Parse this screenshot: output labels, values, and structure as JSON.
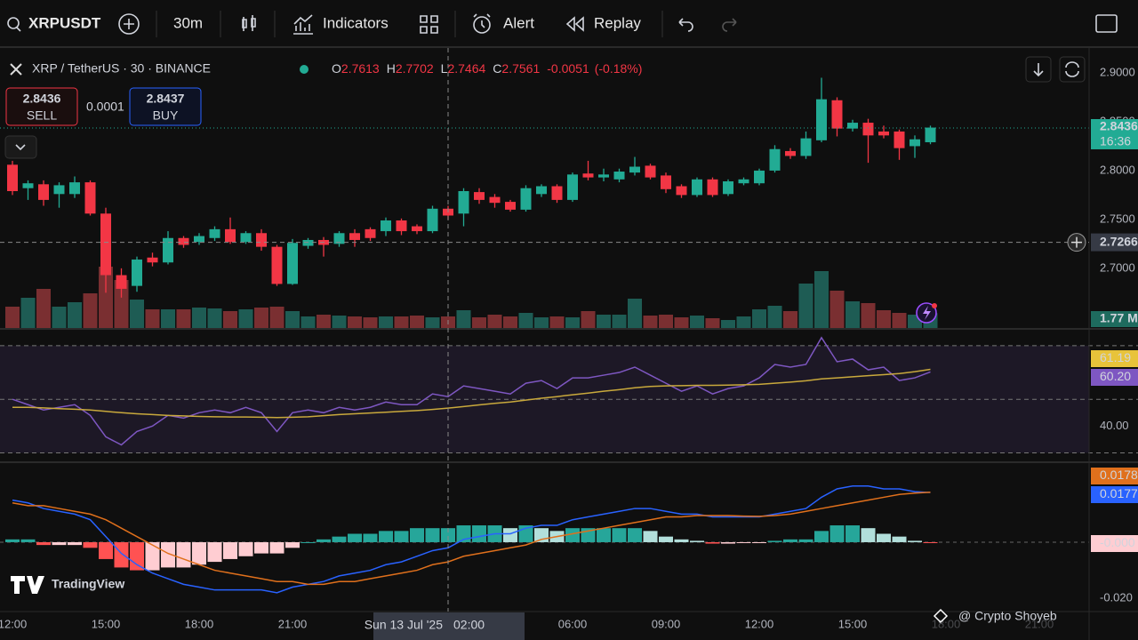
{
  "toolbar": {
    "symbol": "XRPUSDT",
    "interval": "30m",
    "indicators": "Indicators",
    "alert": "Alert",
    "replay": "Replay"
  },
  "legend": {
    "title": "XRP / TetherUS · 30 · BINANCE",
    "ohlc": [
      {
        "key": "O",
        "value": 2.7613
      },
      {
        "key": "H",
        "value": 2.7702
      },
      {
        "key": "L",
        "value": 2.7464
      },
      {
        "key": "C",
        "value": 2.7561
      }
    ],
    "change": -0.0051,
    "change_pct": "(-0.18%)"
  },
  "trade": {
    "sell_price": 2.8436,
    "sell": "SELL",
    "spread": 0.0001,
    "buy_price": 2.8437,
    "buy": "BUY"
  },
  "price_pane": {
    "ylim": [
      2.638,
      2.92
    ],
    "yticks": [
      {
        "value": 2.9,
        "label": "2.9000"
      },
      {
        "value": 2.85,
        "label": "2.8500"
      },
      {
        "value": 2.8,
        "label": "2.8000"
      },
      {
        "value": 2.75,
        "label": "2.7500"
      },
      {
        "value": 2.7,
        "label": "2.7000"
      }
    ],
    "up_color": "#22ab94",
    "down_color": "#f23645",
    "vol_up_color": "#1e5c54",
    "vol_down_color": "#7a2f31",
    "candles": [
      [
        2.806,
        2.81,
        2.775,
        2.779
      ],
      [
        2.782,
        2.79,
        2.77,
        2.787
      ],
      [
        2.786,
        2.79,
        2.764,
        2.77
      ],
      [
        2.776,
        2.788,
        2.762,
        2.785
      ],
      [
        2.776,
        2.794,
        2.772,
        2.788
      ],
      [
        2.788,
        2.79,
        2.754,
        2.756
      ],
      [
        2.756,
        2.762,
        2.675,
        2.693
      ],
      [
        2.693,
        2.7,
        2.67,
        2.679
      ],
      [
        2.682,
        2.712,
        2.676,
        2.709
      ],
      [
        2.711,
        2.716,
        2.702,
        2.706
      ],
      [
        2.706,
        2.738,
        2.704,
        2.731
      ],
      [
        2.731,
        2.733,
        2.721,
        2.724
      ],
      [
        2.727,
        2.736,
        2.724,
        2.733
      ],
      [
        2.731,
        2.743,
        2.728,
        2.74
      ],
      [
        2.74,
        2.752,
        2.725,
        2.727
      ],
      [
        2.727,
        2.738,
        2.725,
        2.736
      ],
      [
        2.736,
        2.74,
        2.718,
        2.722
      ],
      [
        2.722,
        2.724,
        2.682,
        2.684
      ],
      [
        2.684,
        2.73,
        2.683,
        2.726
      ],
      [
        2.723,
        2.731,
        2.72,
        2.729
      ],
      [
        2.729,
        2.732,
        2.712,
        2.724
      ],
      [
        2.725,
        2.738,
        2.722,
        2.736
      ],
      [
        2.736,
        2.74,
        2.722,
        2.729
      ],
      [
        2.74,
        2.742,
        2.728,
        2.731
      ],
      [
        2.738,
        2.752,
        2.733,
        2.749
      ],
      [
        2.749,
        2.751,
        2.734,
        2.738
      ],
      [
        2.743,
        2.745,
        2.735,
        2.738
      ],
      [
        2.738,
        2.764,
        2.736,
        2.761
      ],
      [
        2.761,
        2.764,
        2.75,
        2.754
      ],
      [
        2.756,
        2.782,
        2.743,
        2.779
      ],
      [
        2.778,
        2.782,
        2.766,
        2.77
      ],
      [
        2.773,
        2.776,
        2.762,
        2.767
      ],
      [
        2.768,
        2.77,
        2.758,
        2.76
      ],
      [
        2.76,
        2.785,
        2.758,
        2.782
      ],
      [
        2.776,
        2.786,
        2.773,
        2.784
      ],
      [
        2.784,
        2.786,
        2.767,
        2.77
      ],
      [
        2.77,
        2.798,
        2.768,
        2.796
      ],
      [
        2.797,
        2.81,
        2.79,
        2.793
      ],
      [
        2.793,
        2.802,
        2.789,
        2.796
      ],
      [
        2.791,
        2.802,
        2.788,
        2.799
      ],
      [
        2.798,
        2.814,
        2.795,
        2.804
      ],
      [
        2.805,
        2.807,
        2.791,
        2.793
      ],
      [
        2.795,
        2.798,
        2.777,
        2.781
      ],
      [
        2.784,
        2.786,
        2.772,
        2.775
      ],
      [
        2.775,
        2.793,
        2.773,
        2.791
      ],
      [
        2.791,
        2.793,
        2.773,
        2.775
      ],
      [
        2.776,
        2.791,
        2.774,
        2.789
      ],
      [
        2.787,
        2.793,
        2.785,
        2.791
      ],
      [
        2.787,
        2.802,
        2.785,
        2.8
      ],
      [
        2.8,
        2.826,
        2.798,
        2.822
      ],
      [
        2.82,
        2.823,
        2.812,
        2.815
      ],
      [
        2.815,
        2.84,
        2.812,
        2.833
      ],
      [
        2.831,
        2.895,
        2.829,
        2.873
      ],
      [
        2.872,
        2.875,
        2.835,
        2.843
      ],
      [
        2.843,
        2.852,
        2.84,
        2.849
      ],
      [
        2.849,
        2.853,
        2.808,
        2.836
      ],
      [
        2.84,
        2.846,
        2.833,
        2.836
      ],
      [
        2.84,
        2.842,
        2.811,
        2.823
      ],
      [
        2.825,
        2.836,
        2.813,
        2.832
      ],
      [
        2.829,
        2.846,
        2.827,
        2.844
      ]
    ],
    "volume_ylim": [
      0,
      31
    ],
    "volumes": [
      2.5,
      3.5,
      4.5,
      2.5,
      3,
      4,
      7,
      5.5,
      3.3,
      2.2,
      2.2,
      2.2,
      2.4,
      2.3,
      2,
      2.2,
      2.4,
      2.5,
      2,
      1.4,
      1.6,
      1.5,
      1.4,
      1.3,
      1.4,
      1.4,
      1.5,
      1.3,
      1.4,
      2.1,
      1.3,
      1.6,
      1.4,
      1.8,
      1.3,
      1.4,
      1.3,
      2,
      1.6,
      1.6,
      3.4,
      1.5,
      1.6,
      1.3,
      1.5,
      1.2,
      1,
      1.4,
      2.2,
      2.6,
      2,
      5.1,
      6.5,
      4.3,
      3.1,
      2.9,
      2.1,
      1.8,
      1.6,
      1.77
    ],
    "last_price": 2.8436,
    "countdown": "16:36",
    "volume_label": "1.77 M",
    "crosshair_price": 2.7266,
    "crosshair_label": "2.7266"
  },
  "rsi_pane": {
    "ylim": [
      27.2,
      74.6
    ],
    "bands": [
      70,
      50,
      30
    ],
    "yticks": [
      {
        "value": 40,
        "label": "40.00"
      }
    ],
    "rsi_color": "#7e57c2",
    "ma_color": "#c9a93c",
    "rsi": [
      50,
      48,
      46,
      47,
      48,
      44,
      36,
      33,
      38,
      40,
      44,
      43,
      45,
      46,
      45,
      47,
      45,
      38,
      45,
      46,
      45,
      47,
      46,
      47,
      49,
      48,
      48,
      52,
      51,
      55,
      54,
      53,
      52,
      56,
      57,
      54,
      58,
      58,
      59,
      60,
      62,
      59,
      56,
      53,
      55,
      52,
      54,
      55,
      58,
      63,
      62,
      63,
      73,
      64,
      65,
      61,
      62,
      57,
      58,
      60.2
    ],
    "ma": [
      47,
      47,
      46.8,
      46.5,
      46.3,
      46,
      45.5,
      45,
      44.6,
      44.3,
      44,
      43.8,
      43.6,
      43.5,
      43.4,
      43.4,
      43.3,
      43.2,
      43.3,
      43.5,
      43.9,
      44.3,
      44.6,
      44.9,
      45.2,
      45.5,
      45.8,
      46.2,
      46.7,
      47.3,
      47.9,
      48.5,
      49,
      49.7,
      50.4,
      51,
      51.7,
      52.3,
      53,
      53.6,
      54.3,
      54.8,
      55,
      55.1,
      55.2,
      55.2,
      55.3,
      55.4,
      55.6,
      56,
      56.4,
      56.9,
      57.6,
      58,
      58.4,
      58.8,
      59.2,
      59.6,
      60.3,
      61.19
    ],
    "ma_label": "61.19",
    "rsi_label": "60.20"
  },
  "macd_pane": {
    "ylim": [
      -0.0247,
      0.0269
    ],
    "yticks": [
      {
        "value": -0.02,
        "label": "-0.020"
      }
    ],
    "macd_color": "#2962ff",
    "signal_color": "#e0701c",
    "hist_colors": [
      "#26a69a",
      "#b2dfdb",
      "#ffcdd2",
      "#ff5252"
    ],
    "macd": [
      0.015,
      0.014,
      0.012,
      0.011,
      0.01,
      0.008,
      0.002,
      -0.004,
      -0.008,
      -0.011,
      -0.013,
      -0.015,
      -0.016,
      -0.017,
      -0.017,
      -0.017,
      -0.017,
      -0.018,
      -0.016,
      -0.015,
      -0.014,
      -0.012,
      -0.011,
      -0.01,
      -0.008,
      -0.007,
      -0.005,
      -0.003,
      -0.002,
      0.001,
      0.002,
      0.003,
      0.003,
      0.005,
      0.006,
      0.006,
      0.008,
      0.009,
      0.01,
      0.011,
      0.012,
      0.012,
      0.011,
      0.01,
      0.01,
      0.009,
      0.009,
      0.009,
      0.009,
      0.01,
      0.011,
      0.012,
      0.016,
      0.019,
      0.02,
      0.02,
      0.019,
      0.019,
      0.018,
      0.0177
    ],
    "signal": [
      0.014,
      0.013,
      0.013,
      0.012,
      0.011,
      0.01,
      0.008,
      0.005,
      0.002,
      -0.001,
      -0.004,
      -0.006,
      -0.008,
      -0.01,
      -0.011,
      -0.012,
      -0.013,
      -0.014,
      -0.014,
      -0.015,
      -0.015,
      -0.014,
      -0.014,
      -0.013,
      -0.012,
      -0.011,
      -0.01,
      -0.008,
      -0.007,
      -0.005,
      -0.004,
      -0.003,
      -0.002,
      -0.001,
      0.001,
      0.002,
      0.003,
      0.004,
      0.005,
      0.006,
      0.007,
      0.008,
      0.009,
      0.009,
      0.0095,
      0.0095,
      0.0095,
      0.0093,
      0.0092,
      0.0095,
      0.01,
      0.011,
      0.012,
      0.013,
      0.014,
      0.015,
      0.016,
      0.017,
      0.0175,
      0.0178
    ],
    "histogram": [
      0.001,
      0.001,
      -0.001,
      -0.001,
      -0.001,
      -0.002,
      -0.006,
      -0.009,
      -0.01,
      -0.01,
      -0.009,
      -0.009,
      -0.008,
      -0.007,
      -0.006,
      -0.005,
      -0.004,
      -0.004,
      -0.002,
      0,
      0.001,
      0.002,
      0.003,
      0.003,
      0.004,
      0.004,
      0.005,
      0.005,
      0.005,
      0.006,
      0.006,
      0.006,
      0.005,
      0.006,
      0.005,
      0.004,
      0.005,
      0.005,
      0.005,
      0.005,
      0.005,
      0.004,
      0.002,
      0.001,
      0.0005,
      -0.0005,
      -0.0005,
      -0.0003,
      -0.0002,
      0.0005,
      0.001,
      0.001,
      0.004,
      0.006,
      0.006,
      0.005,
      0.003,
      0.002,
      0.0005,
      -0.0001
    ],
    "signal_label": "0.0178",
    "macd_label": "0.0177",
    "hist_label": "-0.000"
  },
  "time_axis": {
    "ticks": [
      {
        "value": 0,
        "label": "12:00"
      },
      {
        "value": 6,
        "label": "15:00"
      },
      {
        "value": 12,
        "label": "18:00"
      },
      {
        "value": 18,
        "label": "21:00"
      },
      {
        "value": 36,
        "label": "06:00"
      },
      {
        "value": 42,
        "label": "09:00"
      },
      {
        "value": 48,
        "label": "12:00"
      },
      {
        "value": 54,
        "label": "15:00"
      },
      {
        "value": 60,
        "label": "18:00"
      },
      {
        "value": 66,
        "label": "21:00"
      }
    ],
    "crosshair_index": 28,
    "crosshair_date": "Sun 13 Jul '25",
    "crosshair_time": "02:00"
  },
  "watermark": "TradingView",
  "credit": "@ Crypto Shoyeb"
}
